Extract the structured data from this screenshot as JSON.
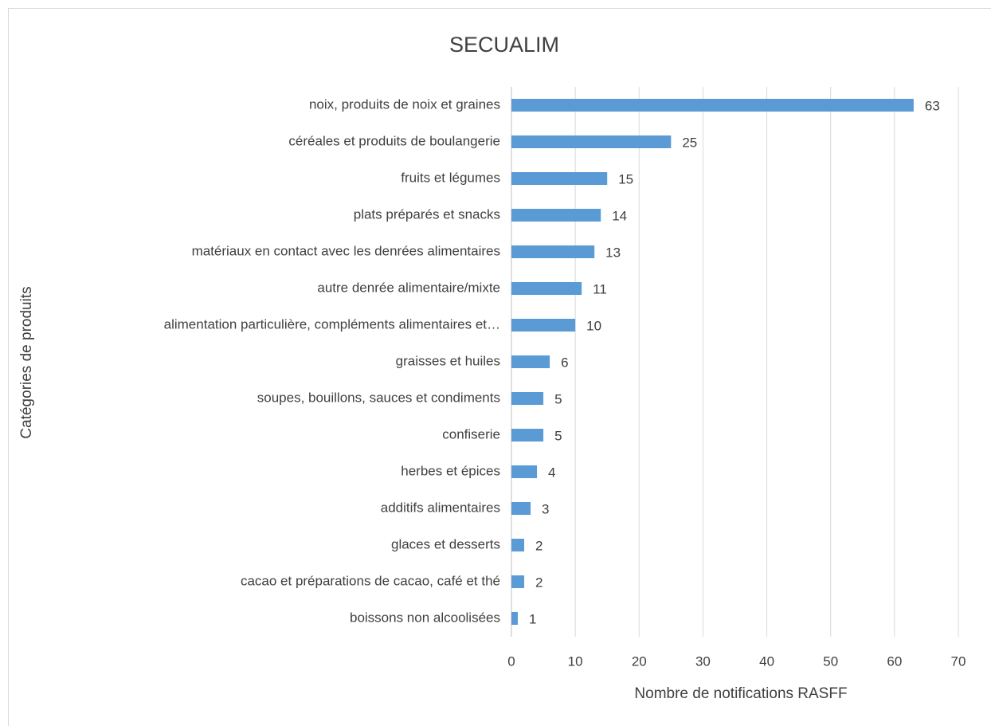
{
  "chart_data": {
    "type": "bar",
    "horizontal": true,
    "title": "SECUALIM",
    "xlabel": "Nombre de notifications RASFF",
    "ylabel": "Catégories de produits",
    "categories": [
      "noix, produits de noix et graines",
      "céréales et produits de boulangerie",
      "fruits et légumes",
      "plats préparés et snacks",
      "matériaux en contact avec les denrées alimentaires",
      "autre denrée alimentaire/mixte",
      "alimentation particulière, compléments alimentaires et…",
      "graisses et huiles",
      "soupes, bouillons, sauces et condiments",
      "confiserie",
      "herbes et épices",
      "additifs alimentaires",
      "glaces et desserts",
      "cacao et préparations de cacao, café et thé",
      "boissons non alcoolisées"
    ],
    "values": [
      63,
      25,
      15,
      14,
      13,
      11,
      10,
      6,
      5,
      5,
      4,
      3,
      2,
      2,
      1
    ],
    "color": "#5b9bd5",
    "xlim": [
      0,
      70
    ],
    "xticks": [
      0,
      10,
      20,
      30,
      40,
      50,
      60,
      70
    ],
    "grid": true
  }
}
